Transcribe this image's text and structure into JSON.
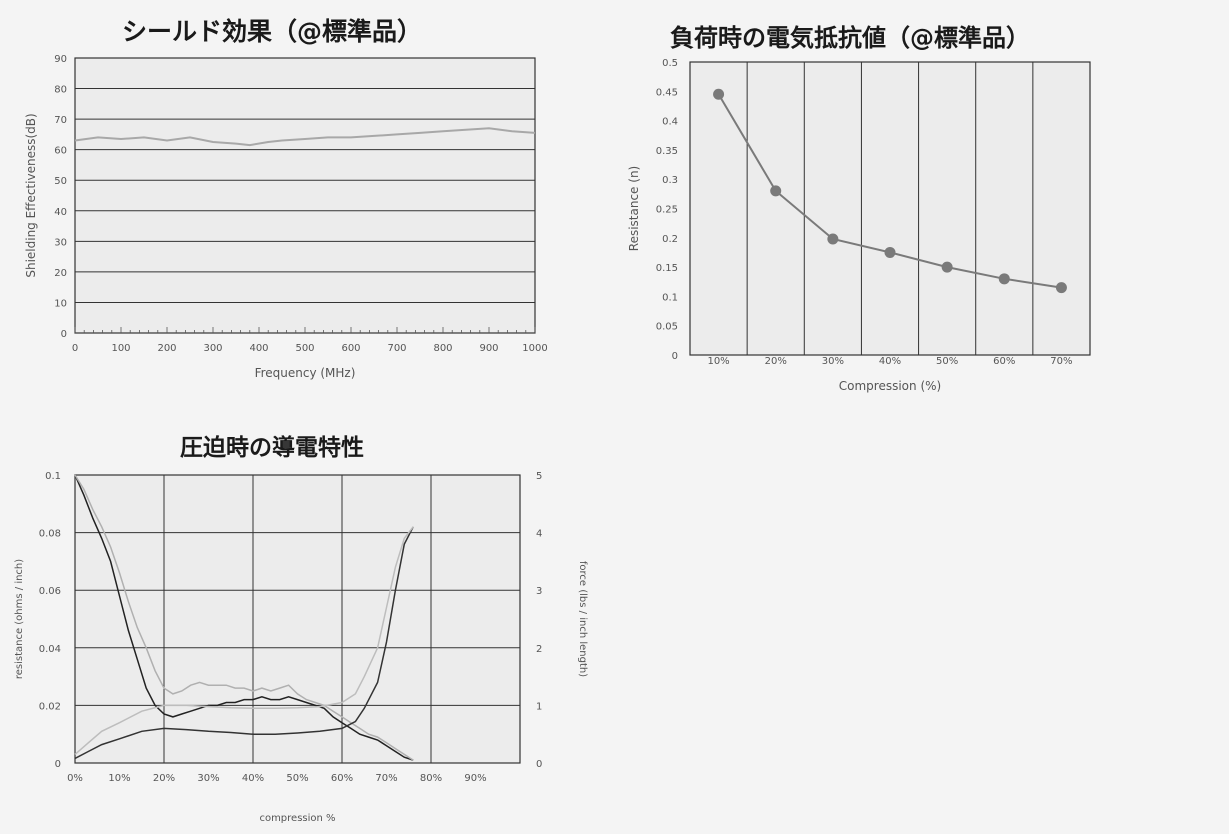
{
  "titles": {
    "shield": "シールド効果（@標準品）",
    "resist": "負荷時の電気抵抗値（@標準品）",
    "compress": "圧迫時の導電特性"
  },
  "chart_data": [
    {
      "id": "shield",
      "type": "line",
      "xlabel": "Frequency (MHz)",
      "ylabel": "Shielding Effectiveness(dB)",
      "xlim": [
        0,
        1000
      ],
      "ylim": [
        0,
        90
      ],
      "xticks": [
        "0",
        "100",
        "200",
        "300",
        "400",
        "500",
        "600",
        "700",
        "800",
        "900",
        "1000"
      ],
      "yticks": [
        "0",
        "10",
        "20",
        "30",
        "40",
        "50",
        "60",
        "70",
        "80",
        "90"
      ],
      "grid": "horizontal",
      "series": [
        {
          "color": "#a8a8a8",
          "x": [
            0,
            50,
            100,
            150,
            200,
            250,
            300,
            350,
            380,
            420,
            450,
            500,
            550,
            600,
            650,
            700,
            750,
            800,
            850,
            900,
            950,
            1000
          ],
          "y": [
            63,
            64,
            63.5,
            64,
            63,
            64,
            62.5,
            62,
            61.5,
            62.5,
            63,
            63.5,
            64,
            64,
            64.5,
            65,
            65.5,
            66,
            66.5,
            67,
            66,
            65.5
          ]
        }
      ]
    },
    {
      "id": "resist",
      "type": "line",
      "xlabel": "Compression (%)",
      "ylabel": "Resistance (n)",
      "categories": [
        "10%",
        "20%",
        "30%",
        "40%",
        "50%",
        "60%",
        "70%"
      ],
      "ylim": [
        0,
        0.5
      ],
      "yticks": [
        "0",
        "0.05",
        "0.1",
        "0.15",
        "0.2",
        "0.25",
        "0.3",
        "0.35",
        "0.4",
        "0.45",
        "0.5"
      ],
      "grid": "vertical",
      "series": [
        {
          "color": "#7a7a7a",
          "values": [
            0.445,
            0.28,
            0.198,
            0.175,
            0.15,
            0.13,
            0.115
          ]
        }
      ]
    },
    {
      "id": "compress",
      "type": "line",
      "xlabel": "compression %",
      "ylabel": "resistance (ohms / inch)",
      "y2label": "force (lbs / inch length)",
      "xticks": [
        "0%",
        "10%",
        "20%",
        "30%",
        "40%",
        "50%",
        "60%",
        "70%",
        "80%",
        "90%"
      ],
      "xlim": [
        0,
        100
      ],
      "ylim": [
        0,
        0.1
      ],
      "y2lim": [
        0,
        5
      ],
      "yticks": [
        "0",
        "0.02",
        "0.04",
        "0.06",
        "0.08",
        "0.1"
      ],
      "y2ticks": [
        "0",
        "1",
        "2",
        "3",
        "4",
        "5"
      ],
      "grid": "both",
      "series": [
        {
          "axis": "y",
          "color": "#222222",
          "x": [
            0,
            2,
            4,
            6,
            8,
            10,
            12,
            14,
            16,
            18,
            20,
            22,
            24,
            26,
            28,
            30,
            32,
            34,
            36,
            38,
            40,
            42,
            44,
            46,
            48,
            50,
            52,
            54,
            56,
            58,
            60,
            62,
            64,
            66,
            68,
            70,
            72,
            74,
            76
          ],
          "y": [
            0.1,
            0.093,
            0.085,
            0.078,
            0.07,
            0.058,
            0.046,
            0.036,
            0.026,
            0.02,
            0.017,
            0.016,
            0.017,
            0.018,
            0.019,
            0.02,
            0.02,
            0.021,
            0.021,
            0.022,
            0.022,
            0.023,
            0.022,
            0.022,
            0.023,
            0.022,
            0.021,
            0.02,
            0.019,
            0.016,
            0.014,
            0.012,
            0.01,
            0.009,
            0.008,
            0.006,
            0.004,
            0.002,
            0.001
          ]
        },
        {
          "axis": "y",
          "color": "#b0b0b0",
          "x": [
            0,
            2,
            4,
            6,
            8,
            10,
            12,
            14,
            16,
            18,
            20,
            22,
            24,
            26,
            28,
            30,
            32,
            34,
            36,
            38,
            40,
            42,
            44,
            46,
            48,
            50,
            52,
            54,
            56,
            58,
            60,
            62,
            64,
            66,
            68,
            70,
            72,
            74,
            76
          ],
          "y": [
            0.1,
            0.095,
            0.088,
            0.082,
            0.075,
            0.066,
            0.056,
            0.047,
            0.04,
            0.032,
            0.026,
            0.024,
            0.025,
            0.027,
            0.028,
            0.027,
            0.027,
            0.027,
            0.026,
            0.026,
            0.025,
            0.026,
            0.025,
            0.026,
            0.027,
            0.024,
            0.022,
            0.021,
            0.02,
            0.018,
            0.016,
            0.014,
            0.012,
            0.01,
            0.009,
            0.007,
            0.005,
            0.003,
            0.001
          ]
        },
        {
          "axis": "y2",
          "color": "#333333",
          "x": [
            0,
            3,
            6,
            10,
            15,
            20,
            25,
            30,
            35,
            40,
            45,
            50,
            55,
            60,
            63,
            65,
            68,
            70,
            72,
            74,
            76
          ],
          "y": [
            0.08,
            0.2,
            0.32,
            0.42,
            0.55,
            0.6,
            0.58,
            0.55,
            0.53,
            0.5,
            0.5,
            0.52,
            0.55,
            0.6,
            0.72,
            0.95,
            1.4,
            2.1,
            3.0,
            3.8,
            4.1
          ]
        },
        {
          "axis": "y2",
          "color": "#bdbdbd",
          "x": [
            0,
            3,
            6,
            10,
            15,
            20,
            25,
            30,
            35,
            40,
            45,
            50,
            55,
            60,
            63,
            65,
            68,
            70,
            72,
            74,
            76
          ],
          "y": [
            0.15,
            0.35,
            0.55,
            0.7,
            0.9,
            1.0,
            1.0,
            0.98,
            0.96,
            0.95,
            0.95,
            0.96,
            0.98,
            1.05,
            1.2,
            1.5,
            2.0,
            2.7,
            3.4,
            3.9,
            4.1
          ]
        }
      ]
    }
  ]
}
